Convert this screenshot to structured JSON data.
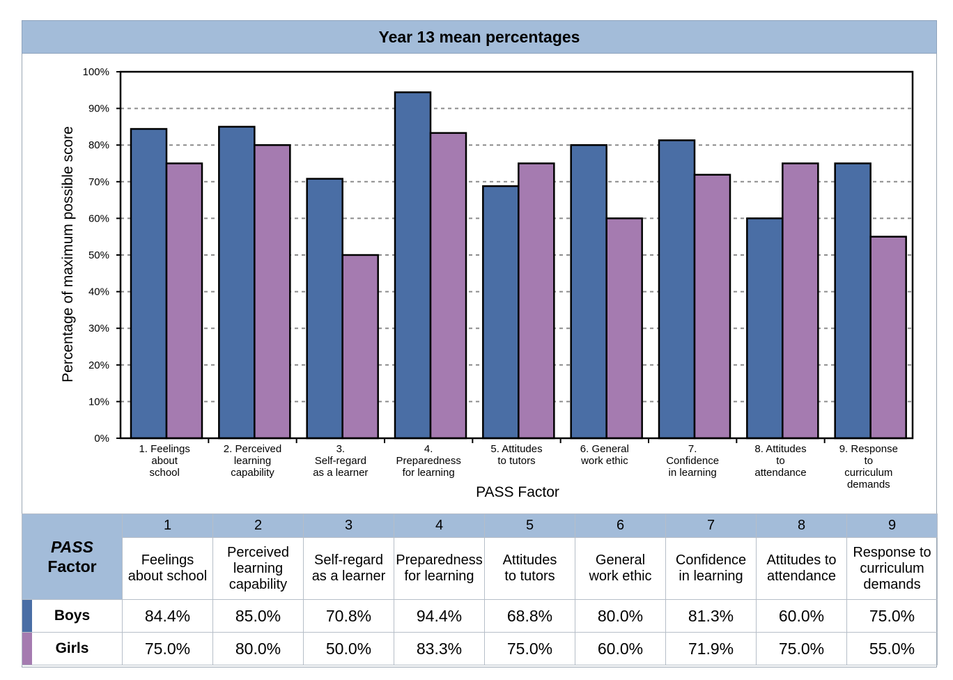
{
  "title": "Year 13 mean percentages",
  "colors": {
    "boys": "#4a6ea5",
    "girls": "#a57bb0",
    "header": "#a3bcd9"
  },
  "chart_data": {
    "type": "bar",
    "title": "Year 13 mean percentages",
    "xlabel": "PASS Factor",
    "ylabel": "Percentage of maximum possible score",
    "ylim": [
      0,
      100
    ],
    "yticks": [
      "0%",
      "10%",
      "20%",
      "30%",
      "40%",
      "50%",
      "60%",
      "70%",
      "80%",
      "90%",
      "100%"
    ],
    "grid": "horizontal dashed",
    "categories": [
      "1. Feelings about school",
      "2. Perceived learning capability",
      "3. Self-regard as a learner",
      "4. Preparedness for learning",
      "5. Attitudes to tutors",
      "6. General work ethic",
      "7. Confidence in learning",
      "8. Attitudes to attendance",
      "9. Response to curriculum demands"
    ],
    "category_lines": [
      [
        "1. Feelings",
        "about",
        "school"
      ],
      [
        "2. Perceived",
        "learning",
        "capability"
      ],
      [
        "3.",
        "Self-regard",
        "as a learner"
      ],
      [
        "4.",
        "Preparedness",
        "for learning"
      ],
      [
        "5. Attitudes",
        "to tutors"
      ],
      [
        "6. General",
        "work ethic"
      ],
      [
        "7.",
        "Confidence",
        "in learning"
      ],
      [
        "8. Attitudes",
        "to",
        "attendance"
      ],
      [
        "9. Response",
        "to",
        "curriculum",
        "demands"
      ]
    ],
    "series": [
      {
        "name": "Boys",
        "color": "#4a6ea5",
        "values": [
          84.4,
          85.0,
          70.8,
          94.4,
          68.8,
          80.0,
          81.3,
          60.0,
          75.0
        ]
      },
      {
        "name": "Girls",
        "color": "#a57bb0",
        "values": [
          75.0,
          80.0,
          50.0,
          83.3,
          75.0,
          60.0,
          71.9,
          75.0,
          55.0
        ]
      }
    ]
  },
  "table": {
    "pass_label": "PASS",
    "factor_label": "Factor",
    "numbers": [
      "1",
      "2",
      "3",
      "4",
      "5",
      "6",
      "7",
      "8",
      "9"
    ],
    "descriptions": [
      [
        "Feelings",
        "about school"
      ],
      [
        "Perceived",
        "learning",
        "capability"
      ],
      [
        "Self-regard",
        "as a learner"
      ],
      [
        "Preparedness",
        "for learning"
      ],
      [
        "Attitudes",
        "to tutors"
      ],
      [
        "General",
        "work ethic"
      ],
      [
        "Confidence",
        "in learning"
      ],
      [
        "Attitudes to",
        "attendance"
      ],
      [
        "Response to",
        "curriculum",
        "demands"
      ]
    ],
    "rows": [
      {
        "label": "Boys",
        "values": [
          "84.4%",
          "85.0%",
          "70.8%",
          "94.4%",
          "68.8%",
          "80.0%",
          "81.3%",
          "60.0%",
          "75.0%"
        ]
      },
      {
        "label": "Girls",
        "values": [
          "75.0%",
          "80.0%",
          "50.0%",
          "83.3%",
          "75.0%",
          "60.0%",
          "71.9%",
          "75.0%",
          "55.0%"
        ]
      }
    ]
  }
}
